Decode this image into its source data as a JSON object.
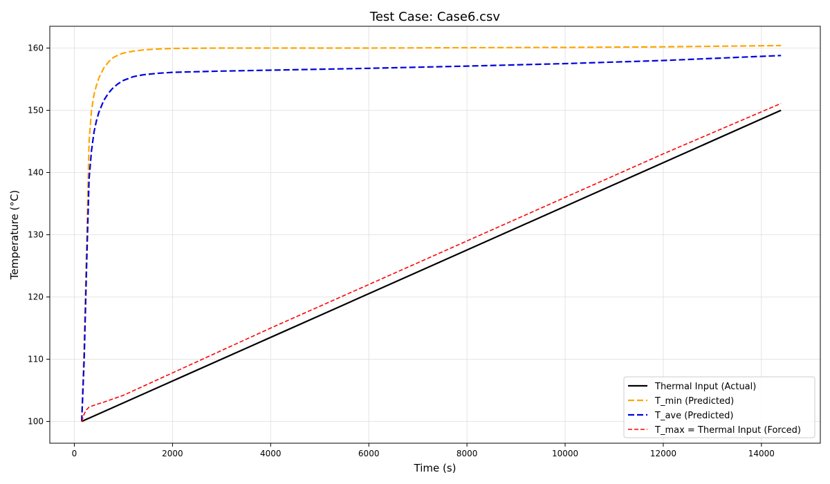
{
  "chart_data": {
    "type": "line",
    "title": "Test Case: Case6.csv",
    "xlabel": "Time (s)",
    "ylabel": "Temperature (°C)",
    "xlim": [
      -500,
      15200
    ],
    "ylim": [
      96.5,
      163.5
    ],
    "xticks": [
      0,
      2000,
      4000,
      6000,
      8000,
      10000,
      12000,
      14000
    ],
    "yticks": [
      100,
      110,
      120,
      130,
      140,
      150,
      160
    ],
    "grid": true,
    "legend_position": "bottom-right",
    "series": [
      {
        "name": "Thermal Input (Actual)",
        "color": "#000000",
        "style": "solid",
        "x": [
          150,
          14400
        ],
        "y": [
          100,
          150
        ]
      },
      {
        "name": "T_min (Predicted)",
        "color": "#ffa500",
        "style": "dashed",
        "x": [
          150,
          200,
          250,
          300,
          350,
          400,
          450,
          500,
          600,
          700,
          800,
          900,
          1000,
          1200,
          1400,
          1700,
          2000,
          3000,
          4000,
          6000,
          8000,
          10000,
          12000,
          14400
        ],
        "y": [
          100,
          112,
          128,
          145,
          150,
          152.5,
          154,
          155.2,
          156.8,
          157.8,
          158.5,
          158.9,
          159.2,
          159.5,
          159.7,
          159.85,
          159.95,
          160,
          160,
          160,
          160.05,
          160.1,
          160.2,
          160.4
        ]
      },
      {
        "name": "T_ave (Predicted)",
        "color": "#0000dd",
        "style": "dashed",
        "x": [
          150,
          200,
          250,
          300,
          350,
          400,
          450,
          500,
          600,
          700,
          800,
          900,
          1000,
          1200,
          1400,
          1700,
          2000,
          3000,
          4000,
          6000,
          8000,
          10000,
          12000,
          14400
        ],
        "y": [
          100,
          110,
          125,
          139,
          143.5,
          146.5,
          148.3,
          149.7,
          151.6,
          152.8,
          153.7,
          154.3,
          154.8,
          155.4,
          155.7,
          155.95,
          156.1,
          156.3,
          156.45,
          156.75,
          157.1,
          157.5,
          158,
          158.8
        ]
      },
      {
        "name": "T_max = Thermal Input (Forced)",
        "color": "#ff0000",
        "style": "dashed-fine",
        "x": [
          150,
          200,
          250,
          300,
          400,
          600,
          1000,
          2000,
          4000,
          6000,
          8000,
          10000,
          12000,
          14400
        ],
        "y": [
          100,
          101.2,
          101.9,
          102.3,
          102.6,
          103.1,
          104.2,
          107.8,
          115,
          122,
          129,
          136,
          143,
          151.1
        ]
      }
    ]
  }
}
